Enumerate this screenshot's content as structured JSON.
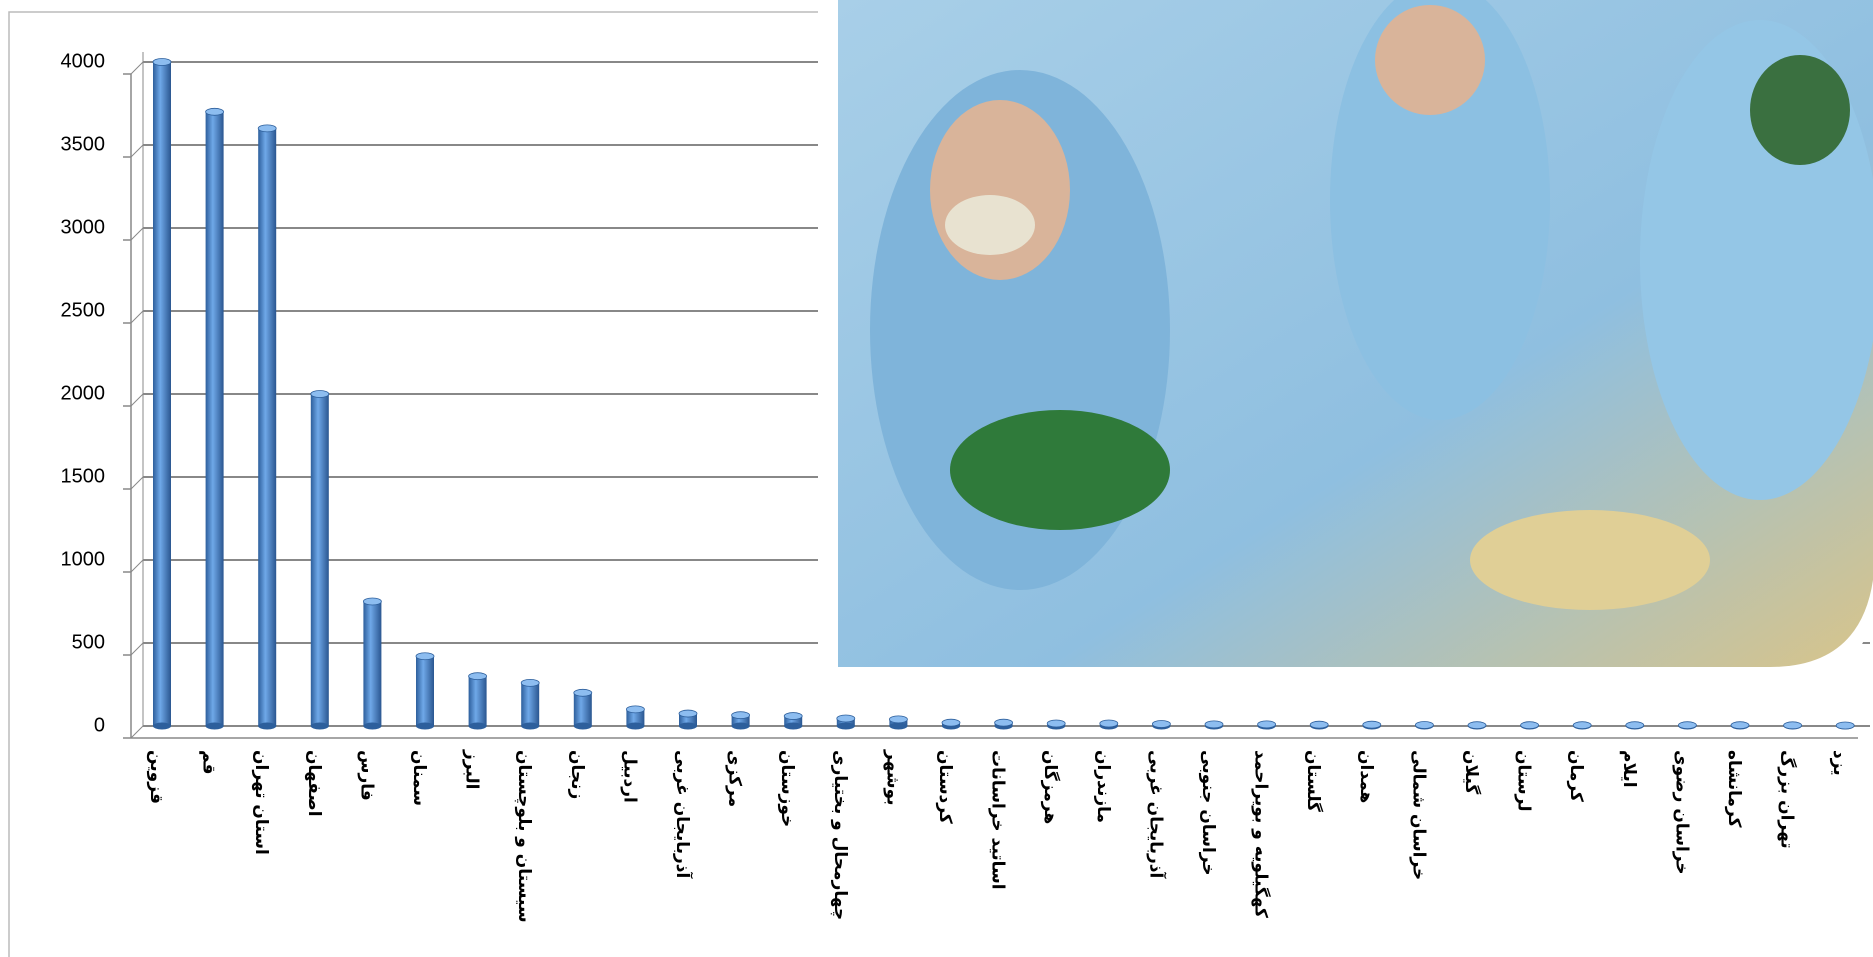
{
  "chart_data": {
    "type": "bar",
    "categories": [
      "قزوین",
      "قم",
      "استان تهران",
      "اصفهان",
      "فارس",
      "سمنان",
      "البرز",
      "سیستان و بلوچستان",
      "زنجان",
      "اردبیل",
      "آذربایجان غربی",
      "مرکزی",
      "خوزستان",
      "چهارمحال و بختیاری",
      "بوشهر",
      "کردستان",
      "اساتید خراسانات",
      "هرمزگان",
      "مازندران",
      "آذربایجان غربی",
      "خراسان جنوبی",
      "کهگیلویه و بویراحمد",
      "گلستان",
      "همدان",
      "خراسان شمالی",
      "گیلان",
      "لرستان",
      "کرمان",
      "ایلام",
      "خراسان رضوی",
      "کرمانشاه",
      "تهران بزرگ",
      "یزد"
    ],
    "values": [
      4000,
      3700,
      3600,
      2000,
      750,
      420,
      300,
      260,
      200,
      100,
      75,
      65,
      60,
      45,
      40,
      20,
      20,
      15,
      15,
      12,
      10,
      10,
      8,
      8,
      6,
      5,
      5,
      5,
      5,
      5,
      5,
      4,
      3
    ],
    "color": "#4f8fd6",
    "ylim": [
      0,
      4000
    ],
    "yticks": [
      0,
      500,
      1000,
      1500,
      2000,
      2500,
      3000,
      3500,
      4000
    ],
    "grid": true
  }
}
